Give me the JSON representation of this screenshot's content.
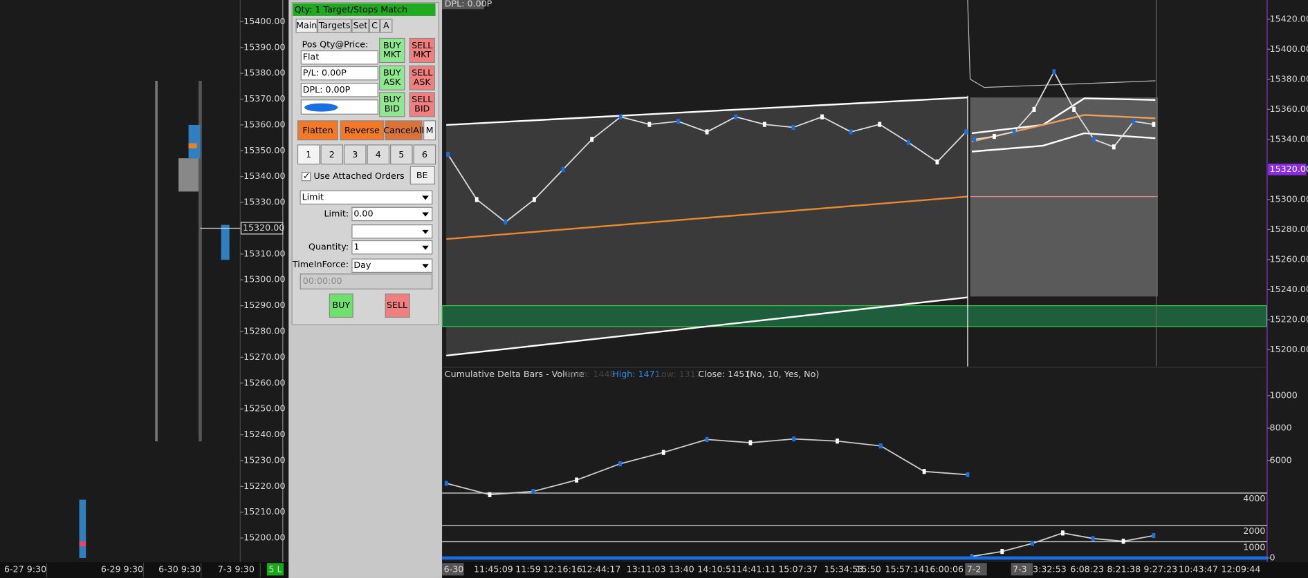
{
  "left_chart": {
    "price_ticks": [
      {
        "value": 15400,
        "label": "15400.00"
      },
      {
        "value": 15390,
        "label": "15390.00"
      },
      {
        "value": 15380,
        "label": "15380.00"
      },
      {
        "value": 15370,
        "label": "15370.00"
      },
      {
        "value": 15360,
        "label": "15360.00"
      },
      {
        "value": 15350,
        "label": "15350.00"
      },
      {
        "value": 15340,
        "label": "15340.00"
      },
      {
        "value": 15330,
        "label": "15330.00"
      },
      {
        "value": 15310,
        "label": "15310.00"
      },
      {
        "value": 15300,
        "label": "15300.00"
      },
      {
        "value": 15290,
        "label": "15290.00"
      },
      {
        "value": 15280,
        "label": "15280.00"
      },
      {
        "value": 15270,
        "label": "15270.00"
      },
      {
        "value": 15260,
        "label": "15260.00"
      },
      {
        "value": 15250,
        "label": "15250.00"
      },
      {
        "value": 15240,
        "label": "15240.00"
      },
      {
        "value": 15230,
        "label": "15230.00"
      },
      {
        "value": 15220,
        "label": "15220.00"
      },
      {
        "value": 15210,
        "label": "15210.00"
      },
      {
        "value": 15200,
        "label": "15200.00"
      }
    ],
    "current_price": {
      "value": 15320,
      "label": "15320.00"
    },
    "dates": [
      "6-27  9:30",
      "6-29  9:30",
      "6-30  9:30",
      "7-3  9:30"
    ],
    "status": "5 L"
  },
  "order_panel": {
    "header": "Qty: 1 Target/Stops Match",
    "tabs": [
      "Main",
      "Targets",
      "Set",
      "C",
      "A"
    ],
    "pos_label": "Pos Qty@Price:",
    "pos_value": "Flat",
    "pl": "P/L: 0.00P",
    "dpl": "DPL: 0.00P",
    "buttons": [
      [
        "BUY",
        "MKT"
      ],
      [
        "SELL",
        "MKT"
      ],
      [
        "BUY",
        "ASK"
      ],
      [
        "SELL",
        "ASK"
      ],
      [
        "BUY",
        "BID"
      ],
      [
        "SELL",
        "BID"
      ]
    ],
    "actions": [
      "Flatten",
      "Reverse",
      "CancelAll",
      "M"
    ],
    "numbers": [
      "1",
      "2",
      "3",
      "4",
      "5",
      "6"
    ],
    "attached_orders": "Use Attached Orders",
    "be": "BE",
    "order_type": "Limit",
    "limit_label": "Limit:",
    "limit_value": "0.00",
    "quantity_label": "Quantity:",
    "quantity_value": "1",
    "tif_label": "TimeInForce:",
    "tif_value": "Day",
    "time_value": "00:00:00",
    "buy": "BUY",
    "sell": "SELL"
  },
  "main_chart": {
    "dpl_label": "DPL: 0.00P",
    "price_ticks": [
      {
        "value": 15420,
        "label": "15420.00"
      },
      {
        "value": 15400,
        "label": "15400.00"
      },
      {
        "value": 15380,
        "label": "15380.00"
      },
      {
        "value": 15360,
        "label": "15360.00"
      },
      {
        "value": 15340,
        "label": "15340.00"
      },
      {
        "value": 15300,
        "label": "15300.00"
      },
      {
        "value": 15280,
        "label": "15280.00"
      },
      {
        "value": 15260,
        "label": "15260.00"
      },
      {
        "value": 15240,
        "label": "15240.00"
      },
      {
        "value": 15220,
        "label": "15220.00"
      },
      {
        "value": 15200,
        "label": "15200.00"
      }
    ],
    "current_price": {
      "value": 15320,
      "label": "15320.00"
    },
    "close_day1": [
      15330,
      15300,
      15285,
      15300,
      15320,
      15340,
      15355,
      15350,
      15352,
      15345,
      15355,
      15350,
      15348,
      15355,
      15345,
      15350,
      15338,
      15325,
      15345
    ],
    "close_day2": [
      15340,
      15342,
      15345,
      15360,
      15385,
      15360,
      15340,
      15335,
      15352,
      15350
    ],
    "indicator": {
      "title": "Cumulative Delta Bars - Volume",
      "open": "Open: 1448",
      "high": "High: 1471",
      "low": "Low: 1317",
      "close": "Close: 1451",
      "params": "(No, 10, Yes, No)"
    },
    "delta_ticks": [
      10000,
      8000,
      6000,
      4000,
      2000,
      1000,
      0
    ],
    "delta_day1": [
      4600,
      3900,
      4100,
      4800,
      5800,
      6500,
      7300,
      7100,
      7330,
      7200,
      6900,
      5330,
      5130
    ],
    "delta_day2": [
      100,
      400,
      900,
      1540,
      1200,
      1030,
      1380
    ],
    "time_labels": [
      "6-30",
      "11:45:09",
      "11:59",
      "12:16:16",
      "12:44:17",
      "13:11:03",
      "13:40",
      "14:10:51",
      "14:41:11",
      "15:07:37",
      "15:34:53",
      "15:50",
      "15:57:14",
      "16:00:06",
      "7-2",
      "7-3",
      "3:32:53",
      "6:08:23",
      "8:21:38",
      "9:27:23",
      "10:43:47",
      "12:09:44"
    ]
  }
}
